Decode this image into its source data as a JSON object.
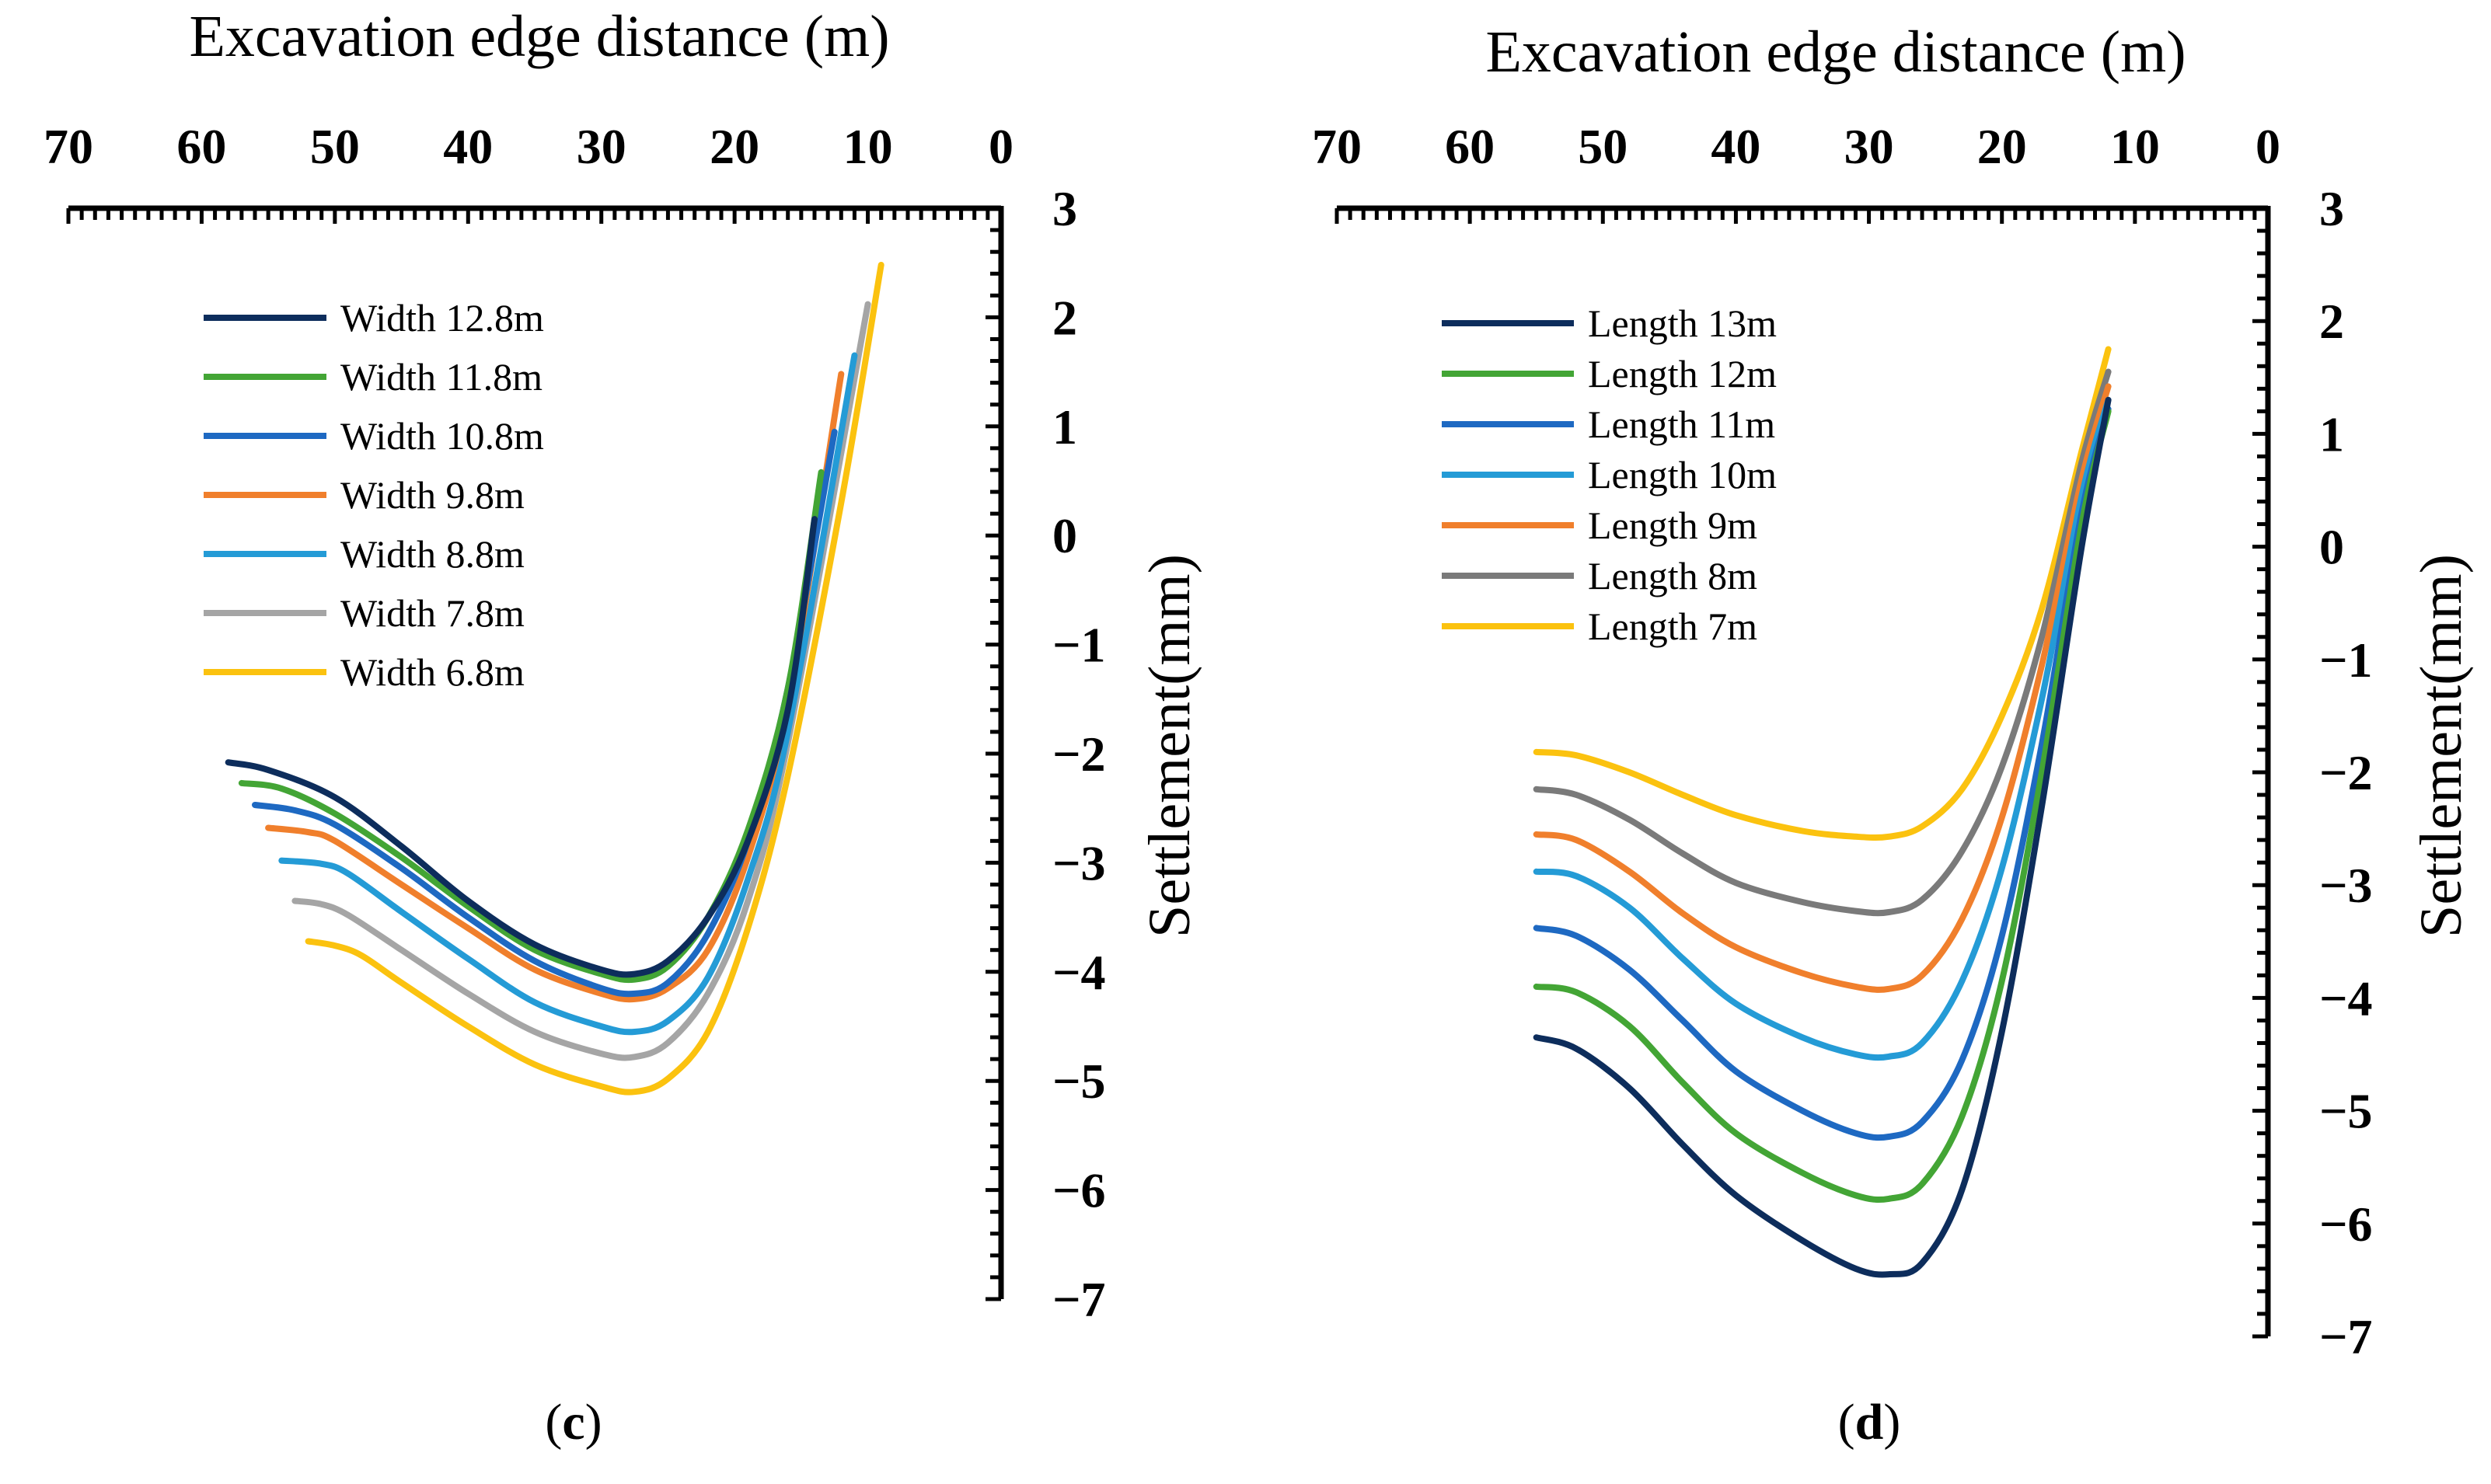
{
  "chart_data": [
    {
      "type": "line",
      "panel_label": "c",
      "xlabel": "Excavation edge distance (m)",
      "ylabel": "Settlement(mm)",
      "xlim": [
        70,
        0
      ],
      "ylim": [
        -7,
        3
      ],
      "x_ticks": [
        "70",
        "60",
        "50",
        "40",
        "30",
        "20",
        "10",
        "0"
      ],
      "y_ticks": [
        "3",
        "2",
        "1",
        "0",
        "−1",
        "−2",
        "−3",
        "−4",
        "−5",
        "−6",
        "−7"
      ],
      "x_axis_position": "top",
      "y_axis_position": "right",
      "legend_position": "top-left",
      "series": [
        {
          "name": "Width 12.8m",
          "color": "#0d2d5c",
          "points": [
            [
              58,
              -2.08
            ],
            [
              55,
              -2.15
            ],
            [
              50,
              -2.4
            ],
            [
              45,
              -2.85
            ],
            [
              40,
              -3.35
            ],
            [
              35,
              -3.75
            ],
            [
              30,
              -3.98
            ],
            [
              27.5,
              -4.02
            ],
            [
              25,
              -3.9
            ],
            [
              22,
              -3.5
            ],
            [
              19,
              -2.8
            ],
            [
              16,
              -1.6
            ],
            [
              14,
              0.15
            ]
          ]
        },
        {
          "name": "Width 11.8m",
          "color": "#43a535",
          "points": [
            [
              57,
              -2.27
            ],
            [
              54,
              -2.32
            ],
            [
              50,
              -2.55
            ],
            [
              45,
              -2.95
            ],
            [
              40,
              -3.4
            ],
            [
              35,
              -3.8
            ],
            [
              30,
              -4.02
            ],
            [
              27.5,
              -4.07
            ],
            [
              25,
              -3.95
            ],
            [
              22,
              -3.5
            ],
            [
              19,
              -2.7
            ],
            [
              16,
              -1.4
            ],
            [
              13.5,
              0.58
            ]
          ]
        },
        {
          "name": "Width 10.8m",
          "color": "#1e69c2",
          "points": [
            [
              56,
              -2.47
            ],
            [
              53,
              -2.52
            ],
            [
              50,
              -2.65
            ],
            [
              45,
              -3.05
            ],
            [
              40,
              -3.5
            ],
            [
              35,
              -3.9
            ],
            [
              30,
              -4.15
            ],
            [
              27.5,
              -4.2
            ],
            [
              25,
              -4.1
            ],
            [
              22,
              -3.65
            ],
            [
              19,
              -2.8
            ],
            [
              16,
              -1.4
            ],
            [
              12.5,
              0.95
            ]
          ]
        },
        {
          "name": "Width 9.8m",
          "color": "#f07f2c",
          "points": [
            [
              55,
              -2.68
            ],
            [
              52,
              -2.72
            ],
            [
              50,
              -2.8
            ],
            [
              45,
              -3.2
            ],
            [
              40,
              -3.6
            ],
            [
              35,
              -3.98
            ],
            [
              30,
              -4.2
            ],
            [
              27.5,
              -4.25
            ],
            [
              25,
              -4.15
            ],
            [
              22,
              -3.8
            ],
            [
              19,
              -2.95
            ],
            [
              16,
              -1.55
            ],
            [
              12,
              1.48
            ]
          ]
        },
        {
          "name": "Width 8.8m",
          "color": "#249bd6",
          "points": [
            [
              54,
              -2.98
            ],
            [
              51,
              -3.01
            ],
            [
              49,
              -3.1
            ],
            [
              45,
              -3.45
            ],
            [
              40,
              -3.88
            ],
            [
              35,
              -4.28
            ],
            [
              30,
              -4.5
            ],
            [
              27.5,
              -4.55
            ],
            [
              25,
              -4.45
            ],
            [
              22,
              -4.05
            ],
            [
              19,
              -3.15
            ],
            [
              16,
              -1.8
            ],
            [
              11,
              1.65
            ]
          ]
        },
        {
          "name": "Width 7.8m",
          "color": "#a5a5a5",
          "points": [
            [
              53,
              -3.35
            ],
            [
              51,
              -3.38
            ],
            [
              49,
              -3.48
            ],
            [
              45,
              -3.8
            ],
            [
              40,
              -4.2
            ],
            [
              35,
              -4.55
            ],
            [
              30,
              -4.75
            ],
            [
              27.5,
              -4.78
            ],
            [
              25,
              -4.65
            ],
            [
              22,
              -4.2
            ],
            [
              19,
              -3.35
            ],
            [
              16,
              -1.9
            ],
            [
              10,
              2.12
            ]
          ]
        },
        {
          "name": "Width 6.8m",
          "color": "#fbc20f",
          "points": [
            [
              52,
              -3.72
            ],
            [
              50,
              -3.76
            ],
            [
              48,
              -3.85
            ],
            [
              45,
              -4.1
            ],
            [
              40,
              -4.5
            ],
            [
              35,
              -4.85
            ],
            [
              30,
              -5.05
            ],
            [
              27.5,
              -5.1
            ],
            [
              25,
              -4.98
            ],
            [
              22,
              -4.55
            ],
            [
              19,
              -3.6
            ],
            [
              16,
              -2.2
            ],
            [
              12,
              0.3
            ],
            [
              9,
              2.48
            ]
          ]
        }
      ]
    },
    {
      "type": "line",
      "panel_label": "d",
      "xlabel": "Excavation edge distance (m)",
      "ylabel": "Settlement(mm)",
      "xlim": [
        70,
        0
      ],
      "ylim": [
        -7,
        3
      ],
      "x_ticks": [
        "70",
        "60",
        "50",
        "40",
        "30",
        "20",
        "10",
        "0"
      ],
      "y_ticks": [
        "3",
        "2",
        "1",
        "0",
        "−1",
        "−2",
        "−3",
        "−4",
        "−5",
        "−6",
        "−7"
      ],
      "x_axis_position": "top",
      "y_axis_position": "right",
      "legend_position": "top-left",
      "series": [
        {
          "name": "Length 13m",
          "color": "#0d2d5c",
          "points": [
            [
              55,
              -4.35
            ],
            [
              52,
              -4.45
            ],
            [
              48,
              -4.8
            ],
            [
              44,
              -5.3
            ],
            [
              40,
              -5.75
            ],
            [
              35,
              -6.15
            ],
            [
              31,
              -6.4
            ],
            [
              28.5,
              -6.45
            ],
            [
              26,
              -6.35
            ],
            [
              23,
              -5.7
            ],
            [
              20,
              -4.3
            ],
            [
              17,
              -2.3
            ],
            [
              14,
              0.0
            ],
            [
              12,
              1.3
            ]
          ]
        },
        {
          "name": "Length 12m",
          "color": "#43a535",
          "points": [
            [
              55,
              -3.9
            ],
            [
              52,
              -3.95
            ],
            [
              48,
              -4.25
            ],
            [
              44,
              -4.75
            ],
            [
              40,
              -5.2
            ],
            [
              35,
              -5.55
            ],
            [
              31,
              -5.75
            ],
            [
              28.5,
              -5.78
            ],
            [
              26,
              -5.65
            ],
            [
              23,
              -5.05
            ],
            [
              20,
              -3.85
            ],
            [
              17,
              -2.0
            ],
            [
              14,
              0.2
            ],
            [
              12,
              1.2
            ]
          ]
        },
        {
          "name": "Length 11m",
          "color": "#1e69c2",
          "points": [
            [
              55,
              -3.38
            ],
            [
              52,
              -3.45
            ],
            [
              48,
              -3.75
            ],
            [
              44,
              -4.2
            ],
            [
              40,
              -4.65
            ],
            [
              35,
              -5.0
            ],
            [
              31,
              -5.2
            ],
            [
              28.5,
              -5.23
            ],
            [
              26,
              -5.1
            ],
            [
              23,
              -4.55
            ],
            [
              20,
              -3.45
            ],
            [
              17,
              -1.75
            ],
            [
              14,
              0.3
            ],
            [
              12,
              1.22
            ]
          ]
        },
        {
          "name": "Length 10m",
          "color": "#249bd6",
          "points": [
            [
              55,
              -2.88
            ],
            [
              52,
              -2.92
            ],
            [
              48,
              -3.2
            ],
            [
              44,
              -3.65
            ],
            [
              40,
              -4.05
            ],
            [
              35,
              -4.35
            ],
            [
              31,
              -4.5
            ],
            [
              28.5,
              -4.52
            ],
            [
              26,
              -4.4
            ],
            [
              23,
              -3.85
            ],
            [
              20,
              -2.85
            ],
            [
              17,
              -1.35
            ],
            [
              14,
              0.45
            ],
            [
              12,
              1.3
            ]
          ]
        },
        {
          "name": "Length 9m",
          "color": "#f07f2c",
          "points": [
            [
              55,
              -2.55
            ],
            [
              52,
              -2.6
            ],
            [
              48,
              -2.88
            ],
            [
              44,
              -3.25
            ],
            [
              40,
              -3.55
            ],
            [
              35,
              -3.78
            ],
            [
              31,
              -3.9
            ],
            [
              28.5,
              -3.92
            ],
            [
              26,
              -3.8
            ],
            [
              23,
              -3.3
            ],
            [
              20,
              -2.4
            ],
            [
              17,
              -1.05
            ],
            [
              14,
              0.6
            ],
            [
              12,
              1.42
            ]
          ]
        },
        {
          "name": "Length 8m",
          "color": "#7a7a7a",
          "points": [
            [
              55,
              -2.15
            ],
            [
              52,
              -2.2
            ],
            [
              48,
              -2.42
            ],
            [
              44,
              -2.72
            ],
            [
              40,
              -2.98
            ],
            [
              35,
              -3.15
            ],
            [
              31,
              -3.23
            ],
            [
              28.5,
              -3.24
            ],
            [
              26,
              -3.13
            ],
            [
              23,
              -2.7
            ],
            [
              20,
              -1.95
            ],
            [
              17,
              -0.8
            ],
            [
              14,
              0.75
            ],
            [
              12,
              1.55
            ]
          ]
        },
        {
          "name": "Length 7m",
          "color": "#fbc20f",
          "points": [
            [
              55,
              -1.82
            ],
            [
              52,
              -1.85
            ],
            [
              48,
              -2.0
            ],
            [
              44,
              -2.2
            ],
            [
              40,
              -2.38
            ],
            [
              35,
              -2.52
            ],
            [
              31,
              -2.57
            ],
            [
              28.5,
              -2.57
            ],
            [
              26,
              -2.48
            ],
            [
              23,
              -2.15
            ],
            [
              20,
              -1.5
            ],
            [
              17,
              -0.55
            ],
            [
              14,
              0.85
            ],
            [
              12,
              1.75
            ]
          ]
        }
      ]
    }
  ]
}
